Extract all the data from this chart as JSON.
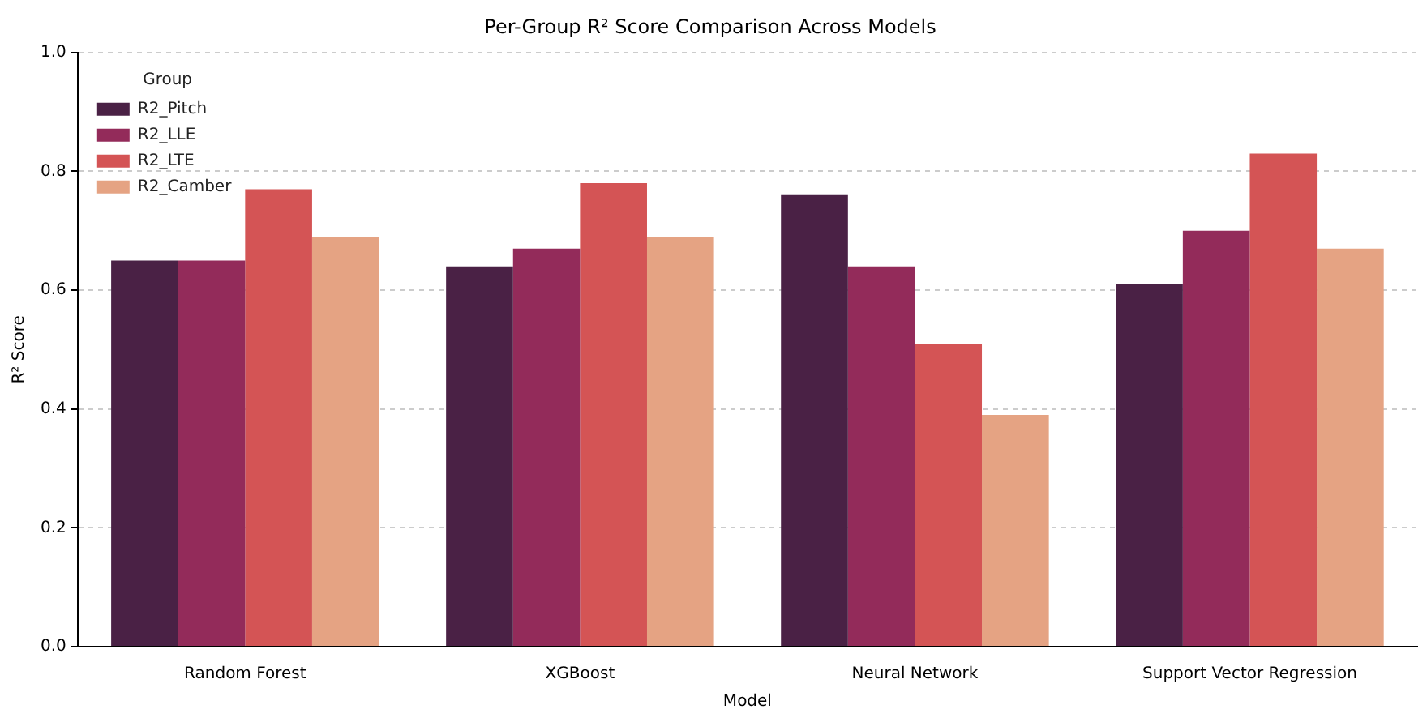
{
  "chart_data": {
    "type": "bar",
    "title": "Per-Group R² Score Comparison Across Models",
    "xlabel": "Model",
    "ylabel": "R² Score",
    "legend_title": "Group",
    "categories": [
      "Random Forest",
      "XGBoost",
      "Neural Network",
      "Support Vector Regression"
    ],
    "series": [
      {
        "name": "R2_Pitch",
        "color": "#4a2145",
        "values": [
          0.65,
          0.64,
          0.76,
          0.61
        ]
      },
      {
        "name": "R2_LLE",
        "color": "#932b5a",
        "values": [
          0.65,
          0.67,
          0.64,
          0.7
        ]
      },
      {
        "name": "R2_LTE",
        "color": "#d45455",
        "values": [
          0.77,
          0.78,
          0.51,
          0.83
        ]
      },
      {
        "name": "R2_Camber",
        "color": "#e5a383",
        "values": [
          0.69,
          0.69,
          0.39,
          0.67
        ]
      }
    ],
    "ylim": [
      0,
      1
    ],
    "yticks": [
      {
        "value": 0,
        "label": "0.0"
      },
      0.2,
      0.4,
      0.6,
      0.8,
      {
        "value": 1,
        "label": "1.0"
      }
    ],
    "grid": "y",
    "legend": "top left"
  }
}
